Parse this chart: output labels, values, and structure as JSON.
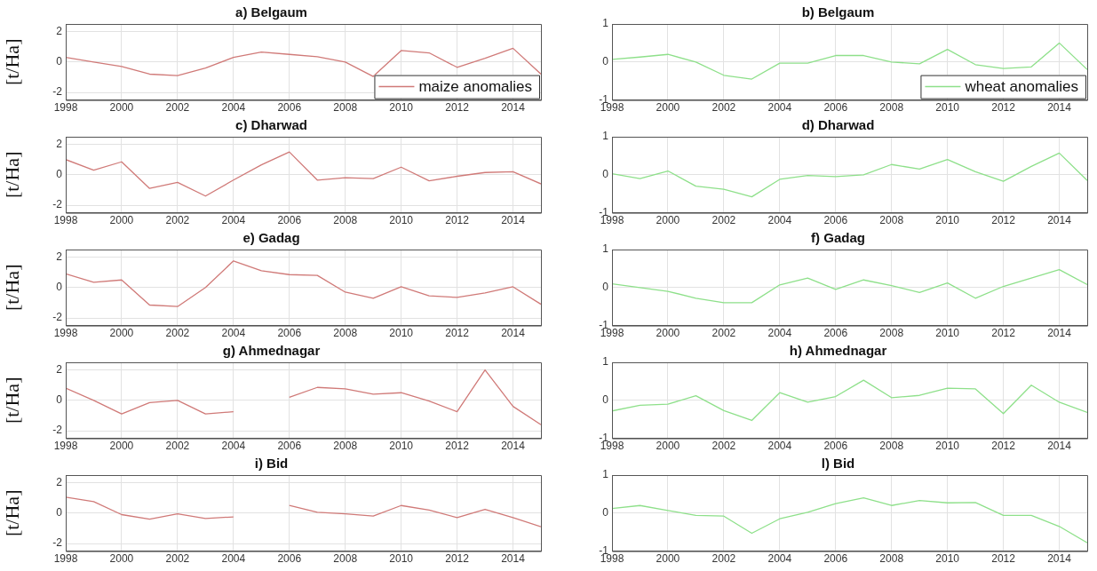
{
  "chart_data": [
    {
      "type": "line",
      "title": "a) Belgaum",
      "ylabel": "[t/Ha]",
      "x": [
        1998,
        1999,
        2000,
        2001,
        2002,
        2003,
        2004,
        2005,
        2006,
        2007,
        2008,
        2009,
        2010,
        2011,
        2012,
        2013,
        2014,
        2015
      ],
      "xlim": [
        1998,
        2015
      ],
      "xticks": [
        1998,
        2000,
        2002,
        2004,
        2006,
        2008,
        2010,
        2012,
        2014
      ],
      "ylim": [
        -2.5,
        2.5
      ],
      "yticks": [
        -2,
        0,
        2
      ],
      "grid": true,
      "legend": "bottom right",
      "series": [
        {
          "name": "maize anomalies",
          "color": "#d07a78",
          "values": [
            0.3,
            0.0,
            -0.3,
            -0.8,
            -0.9,
            -0.4,
            0.3,
            0.65,
            0.5,
            0.35,
            0.0,
            -0.95,
            0.75,
            0.6,
            -0.35,
            0.25,
            0.9,
            -0.8
          ]
        }
      ]
    },
    {
      "type": "line",
      "title": "b) Belgaum",
      "x": [
        1998,
        1999,
        2000,
        2001,
        2002,
        2003,
        2004,
        2005,
        2006,
        2007,
        2008,
        2009,
        2010,
        2011,
        2012,
        2013,
        2014,
        2015
      ],
      "xlim": [
        1998,
        2015
      ],
      "xticks": [
        1998,
        2000,
        2002,
        2004,
        2006,
        2008,
        2010,
        2012,
        2014
      ],
      "ylim": [
        -1,
        1
      ],
      "yticks": [
        -1,
        0,
        1
      ],
      "grid": true,
      "legend": "bottom right",
      "series": [
        {
          "name": "wheat anomalies",
          "color": "#8ee08a",
          "values": [
            0.07,
            0.13,
            0.2,
            0.0,
            -0.35,
            -0.45,
            -0.03,
            -0.03,
            0.17,
            0.17,
            0.0,
            -0.05,
            0.33,
            -0.07,
            -0.17,
            -0.13,
            0.5,
            -0.2
          ]
        }
      ]
    },
    {
      "type": "line",
      "title": "c) Dharwad",
      "ylabel": "[t/Ha]",
      "x": [
        1998,
        1999,
        2000,
        2001,
        2002,
        2003,
        2004,
        2005,
        2006,
        2007,
        2008,
        2009,
        2010,
        2011,
        2012,
        2013,
        2014,
        2015
      ],
      "xlim": [
        1998,
        2015
      ],
      "xticks": [
        1998,
        2000,
        2002,
        2004,
        2006,
        2008,
        2010,
        2012,
        2014
      ],
      "ylim": [
        -2.5,
        2.5
      ],
      "yticks": [
        -2,
        0,
        2
      ],
      "grid": true,
      "series": [
        {
          "color": "#d07a78",
          "values": [
            1.0,
            0.3,
            0.85,
            -0.9,
            -0.5,
            -1.4,
            -0.35,
            0.65,
            1.5,
            -0.35,
            -0.2,
            -0.25,
            0.5,
            -0.4,
            -0.1,
            0.15,
            0.2,
            -0.6
          ]
        }
      ]
    },
    {
      "type": "line",
      "title": "d) Dharwad",
      "x": [
        1998,
        1999,
        2000,
        2001,
        2002,
        2003,
        2004,
        2005,
        2006,
        2007,
        2008,
        2009,
        2010,
        2011,
        2012,
        2013,
        2014,
        2015
      ],
      "xlim": [
        1998,
        2015
      ],
      "xticks": [
        1998,
        2000,
        2002,
        2004,
        2006,
        2008,
        2010,
        2012,
        2014
      ],
      "ylim": [
        -1,
        1
      ],
      "yticks": [
        -1,
        0,
        1
      ],
      "grid": true,
      "series": [
        {
          "color": "#8ee08a",
          "values": [
            0.03,
            -0.1,
            0.1,
            -0.3,
            -0.38,
            -0.58,
            -0.12,
            -0.02,
            -0.05,
            0.0,
            0.27,
            0.15,
            0.4,
            0.08,
            -0.17,
            0.22,
            0.57,
            -0.15
          ]
        }
      ]
    },
    {
      "type": "line",
      "title": "e) Gadag",
      "ylabel": "[t/Ha]",
      "x": [
        1998,
        1999,
        2000,
        2001,
        2002,
        2003,
        2004,
        2005,
        2006,
        2007,
        2008,
        2009,
        2010,
        2011,
        2012,
        2013,
        2014,
        2015
      ],
      "xlim": [
        1998,
        2015
      ],
      "xticks": [
        1998,
        2000,
        2002,
        2004,
        2006,
        2008,
        2010,
        2012,
        2014
      ],
      "ylim": [
        -2.5,
        2.5
      ],
      "yticks": [
        -2,
        0,
        2
      ],
      "grid": true,
      "series": [
        {
          "color": "#d07a78",
          "values": [
            0.9,
            0.35,
            0.5,
            -1.15,
            -1.25,
            0.0,
            1.75,
            1.1,
            0.85,
            0.8,
            -0.3,
            -0.7,
            0.05,
            -0.55,
            -0.65,
            -0.35,
            0.05,
            -1.1
          ]
        }
      ]
    },
    {
      "type": "line",
      "title": "f) Gadag",
      "x": [
        1998,
        1999,
        2000,
        2001,
        2002,
        2003,
        2004,
        2005,
        2006,
        2007,
        2008,
        2009,
        2010,
        2011,
        2012,
        2013,
        2014,
        2015
      ],
      "xlim": [
        1998,
        2015
      ],
      "xticks": [
        1998,
        2000,
        2002,
        2004,
        2006,
        2008,
        2010,
        2012,
        2014
      ],
      "ylim": [
        -1,
        1
      ],
      "yticks": [
        -1,
        0,
        1
      ],
      "grid": true,
      "series": [
        {
          "color": "#8ee08a",
          "values": [
            0.1,
            0.0,
            -0.1,
            -0.28,
            -0.4,
            -0.4,
            0.07,
            0.25,
            -0.05,
            0.2,
            0.05,
            -0.13,
            0.12,
            -0.28,
            0.03,
            0.25,
            0.47,
            0.08
          ]
        }
      ]
    },
    {
      "type": "line",
      "title": "g) Ahmednagar",
      "ylabel": "[t/Ha]",
      "x": [
        1998,
        1999,
        2000,
        2001,
        2002,
        2003,
        2004,
        2005,
        2006,
        2007,
        2008,
        2009,
        2010,
        2011,
        2012,
        2013,
        2014,
        2015
      ],
      "xlim": [
        1998,
        2015
      ],
      "xticks": [
        1998,
        2000,
        2002,
        2004,
        2006,
        2008,
        2010,
        2012,
        2014
      ],
      "ylim": [
        -2.5,
        2.5
      ],
      "yticks": [
        -2,
        0,
        2
      ],
      "grid": true,
      "series": [
        {
          "color": "#d07a78",
          "values": [
            0.8,
            0.0,
            -0.9,
            -0.15,
            0.0,
            -0.9,
            -0.75,
            null,
            0.2,
            0.85,
            0.75,
            0.4,
            0.5,
            -0.05,
            -0.75,
            2.0,
            -0.4,
            -1.6
          ]
        }
      ]
    },
    {
      "type": "line",
      "title": "h) Ahmednagar",
      "x": [
        1998,
        1999,
        2000,
        2001,
        2002,
        2003,
        2004,
        2005,
        2006,
        2007,
        2008,
        2009,
        2010,
        2011,
        2012,
        2013,
        2014,
        2015
      ],
      "xlim": [
        1998,
        2015
      ],
      "xticks": [
        1998,
        2000,
        2002,
        2004,
        2006,
        2008,
        2010,
        2012,
        2014
      ],
      "ylim": [
        -1,
        1
      ],
      "yticks": [
        -1,
        0,
        1
      ],
      "grid": true,
      "series": [
        {
          "color": "#8ee08a",
          "values": [
            -0.28,
            -0.13,
            -0.1,
            0.12,
            -0.27,
            -0.53,
            0.2,
            -0.05,
            0.1,
            0.53,
            0.07,
            0.13,
            0.32,
            0.3,
            -0.35,
            0.4,
            -0.05,
            -0.32
          ]
        }
      ]
    },
    {
      "type": "line",
      "title": "i) Bid",
      "ylabel": "[t/Ha]",
      "x": [
        1998,
        1999,
        2000,
        2001,
        2002,
        2003,
        2004,
        2005,
        2006,
        2007,
        2008,
        2009,
        2010,
        2011,
        2012,
        2013,
        2014,
        2015
      ],
      "xlim": [
        1998,
        2015
      ],
      "xticks": [
        1998,
        2000,
        2002,
        2004,
        2006,
        2008,
        2010,
        2012,
        2014
      ],
      "ylim": [
        -2.5,
        2.5
      ],
      "yticks": [
        -2,
        0,
        2
      ],
      "grid": true,
      "series": [
        {
          "color": "#d07a78",
          "values": [
            1.05,
            0.75,
            -0.1,
            -0.4,
            -0.05,
            -0.35,
            -0.25,
            null,
            0.5,
            0.05,
            -0.05,
            -0.2,
            0.5,
            0.2,
            -0.3,
            0.25,
            -0.3,
            -0.9
          ]
        }
      ]
    },
    {
      "type": "line",
      "title": "l) Bid",
      "x": [
        1998,
        1999,
        2000,
        2001,
        2002,
        2003,
        2004,
        2005,
        2006,
        2007,
        2008,
        2009,
        2010,
        2011,
        2012,
        2013,
        2014,
        2015
      ],
      "xlim": [
        1998,
        2015
      ],
      "xticks": [
        1998,
        2000,
        2002,
        2004,
        2006,
        2008,
        2010,
        2012,
        2014
      ],
      "ylim": [
        -1,
        1
      ],
      "yticks": [
        -1,
        0,
        1
      ],
      "grid": true,
      "series": [
        {
          "color": "#8ee08a",
          "values": [
            0.12,
            0.2,
            0.07,
            -0.06,
            -0.08,
            -0.53,
            -0.15,
            0.02,
            0.25,
            0.4,
            0.2,
            0.33,
            0.27,
            0.28,
            -0.06,
            -0.06,
            -0.35,
            -0.78
          ]
        }
      ]
    }
  ]
}
